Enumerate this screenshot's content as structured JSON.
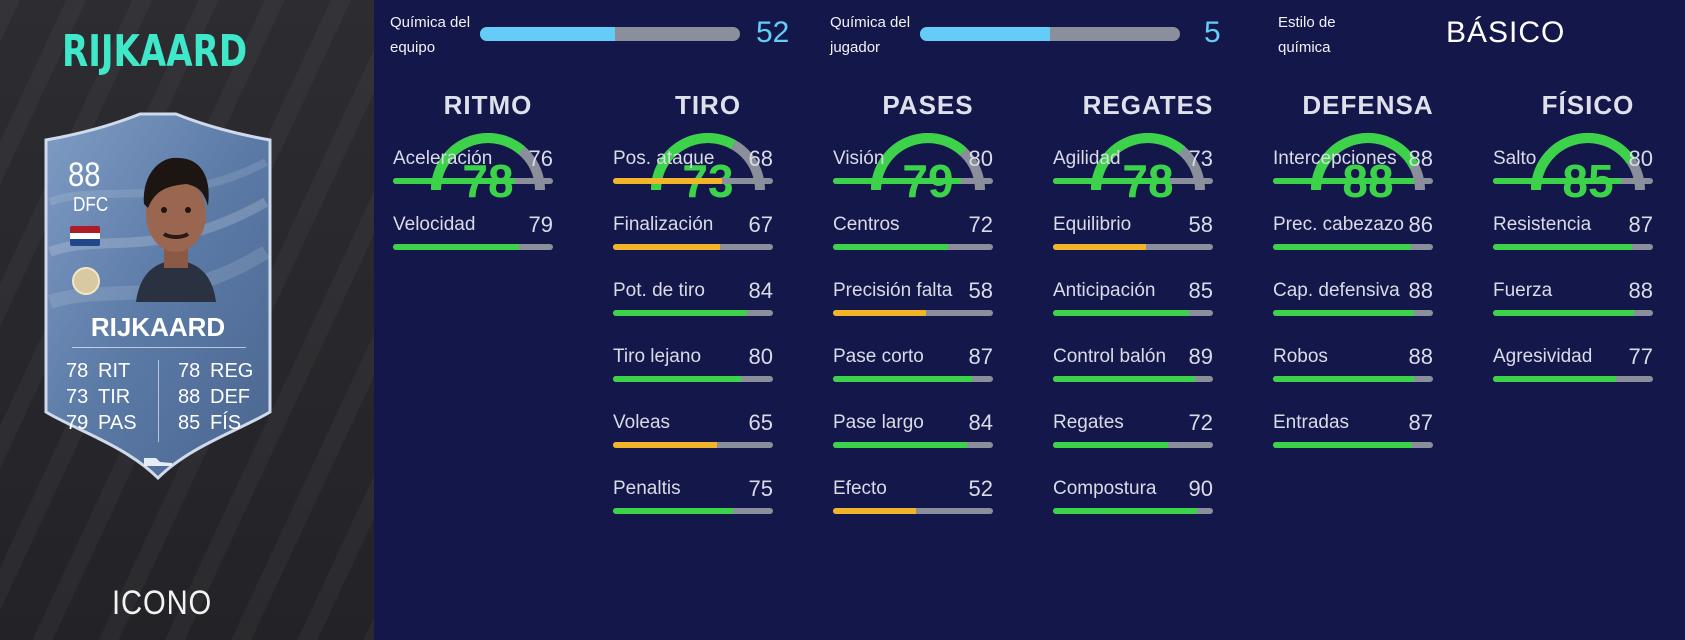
{
  "left_panel": {
    "player_name": "RIJKAARD",
    "card_type": "ICONO",
    "card": {
      "rating": "88",
      "position": "DFC",
      "name": "RIJKAARD",
      "stats_left": [
        {
          "value": "78",
          "label": "RIT"
        },
        {
          "value": "73",
          "label": "TIR"
        },
        {
          "value": "79",
          "label": "PAS"
        }
      ],
      "stats_right": [
        {
          "value": "78",
          "label": "REG"
        },
        {
          "value": "88",
          "label": "DEF"
        },
        {
          "value": "85",
          "label": "FÍS"
        }
      ]
    }
  },
  "header": {
    "team_chem": {
      "label_line1": "Química del",
      "label_line2": "equipo",
      "value": "52",
      "fraction": 0.52
    },
    "player_chem": {
      "label_line1": "Química del",
      "label_line2": "jugador",
      "value": "5",
      "fraction": 0.5
    },
    "chem_style": {
      "label_line1": "Estilo de",
      "label_line2": "química",
      "value": "BÁSICO"
    }
  },
  "colors": {
    "high": "#3cd24a",
    "mid": "#f2b52a",
    "track": "#8a8f9b",
    "chem": "#63cdf7",
    "title_accent": "#3ee8c8"
  },
  "categories": [
    {
      "title": "RITMO",
      "value": "78",
      "attributes": [
        {
          "name": "Aceleración",
          "value": "76"
        },
        {
          "name": "Velocidad",
          "value": "79"
        }
      ]
    },
    {
      "title": "TIRO",
      "value": "73",
      "attributes": [
        {
          "name": "Pos. ataque",
          "value": "68"
        },
        {
          "name": "Finalización",
          "value": "67"
        },
        {
          "name": "Pot. de tiro",
          "value": "84"
        },
        {
          "name": "Tiro lejano",
          "value": "80"
        },
        {
          "name": "Voleas",
          "value": "65"
        },
        {
          "name": "Penaltis",
          "value": "75"
        }
      ]
    },
    {
      "title": "PASES",
      "value": "79",
      "attributes": [
        {
          "name": "Visión",
          "value": "80"
        },
        {
          "name": "Centros",
          "value": "72"
        },
        {
          "name": "Precisión falta",
          "value": "58"
        },
        {
          "name": "Pase corto",
          "value": "87"
        },
        {
          "name": "Pase largo",
          "value": "84"
        },
        {
          "name": "Efecto",
          "value": "52"
        }
      ]
    },
    {
      "title": "REGATES",
      "value": "78",
      "attributes": [
        {
          "name": "Agilidad",
          "value": "73"
        },
        {
          "name": "Equilibrio",
          "value": "58"
        },
        {
          "name": "Anticipación",
          "value": "85"
        },
        {
          "name": "Control balón",
          "value": "89"
        },
        {
          "name": "Regates",
          "value": "72"
        },
        {
          "name": "Compostura",
          "value": "90"
        }
      ]
    },
    {
      "title": "DEFENSA",
      "value": "88",
      "attributes": [
        {
          "name": "Intercepciones",
          "value": "88"
        },
        {
          "name": "Prec. cabezazo",
          "value": "86"
        },
        {
          "name": "Cap. defensiva",
          "value": "88"
        },
        {
          "name": "Robos",
          "value": "88"
        },
        {
          "name": "Entradas",
          "value": "87"
        }
      ]
    },
    {
      "title": "FÍSICO",
      "value": "85",
      "attributes": [
        {
          "name": "Salto",
          "value": "80"
        },
        {
          "name": "Resistencia",
          "value": "87"
        },
        {
          "name": "Fuerza",
          "value": "88"
        },
        {
          "name": "Agresividad",
          "value": "77"
        }
      ]
    }
  ]
}
